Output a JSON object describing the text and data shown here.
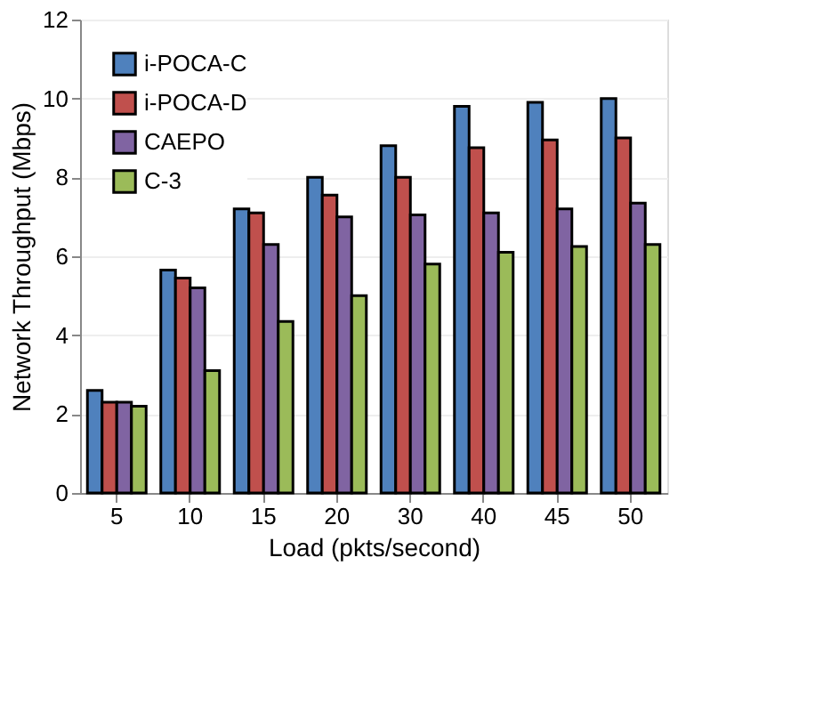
{
  "chart_data": {
    "type": "bar",
    "xlabel": "Load (pkts/second)",
    "ylabel": "Network Throughput (Mbps)",
    "categories": [
      "5",
      "10",
      "15",
      "20",
      "30",
      "40",
      "45",
      "50"
    ],
    "series": [
      {
        "name": "i-POCA-C",
        "color": "#4f81bd",
        "values": [
          2.6,
          5.65,
          7.2,
          8.0,
          8.8,
          9.8,
          9.9,
          10.0
        ]
      },
      {
        "name": "i-POCA-D",
        "color": "#c0504d",
        "values": [
          2.3,
          5.45,
          7.1,
          7.55,
          8.0,
          8.75,
          8.95,
          9.0
        ]
      },
      {
        "name": "CAEPO",
        "color": "#8064a2",
        "values": [
          2.3,
          5.2,
          6.3,
          7.0,
          7.05,
          7.1,
          7.2,
          7.35
        ]
      },
      {
        "name": "C-3",
        "color": "#9bbb59",
        "values": [
          2.2,
          3.1,
          4.35,
          5.0,
          5.8,
          6.1,
          6.25,
          6.3
        ]
      }
    ],
    "ylim": [
      0,
      12
    ],
    "yticks": [
      0,
      2,
      4,
      6,
      8,
      10,
      12
    ],
    "grid": "y",
    "legend": "top left"
  }
}
